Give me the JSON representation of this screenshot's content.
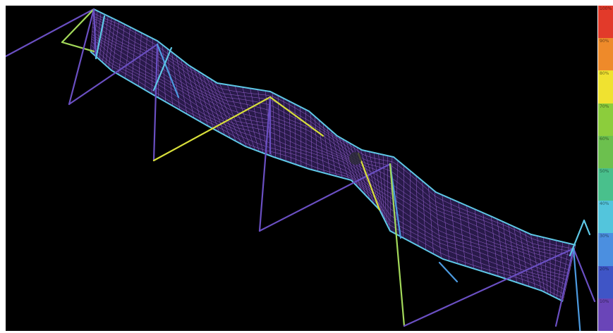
{
  "viewport": {
    "background": "#000000"
  },
  "colors": {
    "mesh": "#a86ee6",
    "mesh_dark": "#4b2f87",
    "strut_purple": "#6a4fc2",
    "strut_blue": "#4c9ae0",
    "strut_cyan": "#5ec8e6",
    "strut_green": "#a3d95a",
    "strut_yellow": "#d8df3a"
  },
  "colorbar": {
    "segments": [
      {
        "color": "#e23a2a",
        "label": "100%"
      },
      {
        "color": "#ee8a2a",
        "label": "90%"
      },
      {
        "color": "#f0e230",
        "label": "80%"
      },
      {
        "color": "#8ccd3c",
        "label": "70%"
      },
      {
        "color": "#6cc04e",
        "label": "60%"
      },
      {
        "color": "#49c08c",
        "label": "50%"
      },
      {
        "color": "#53c5dc",
        "label": "40%"
      },
      {
        "color": "#4b8fe0",
        "label": "30%"
      },
      {
        "color": "#3f55c6",
        "label": "20%"
      },
      {
        "color": "#6a45b8",
        "label": "10%"
      }
    ]
  }
}
